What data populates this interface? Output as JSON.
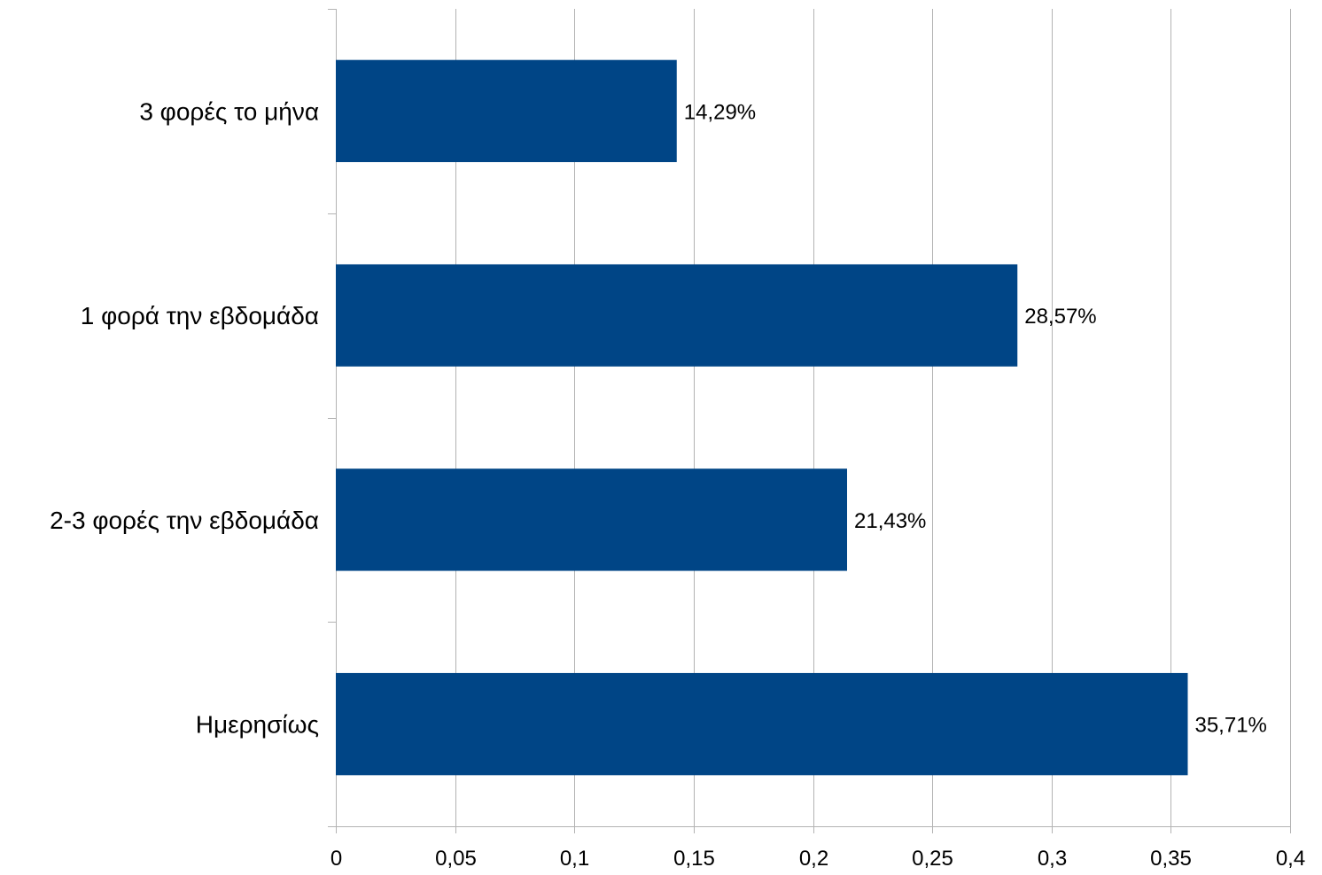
{
  "chart_data": {
    "type": "bar",
    "orientation": "horizontal",
    "title": "",
    "xlabel": "",
    "ylabel": "",
    "categories": [
      "3 φορές το μήνα",
      "1 φορά την εβδομάδα",
      "2-3 φορές την εβδομάδα",
      "Ημερησίως"
    ],
    "values": [
      0.1429,
      0.2857,
      0.2143,
      0.3571
    ],
    "data_labels": [
      "14,29%",
      "28,57%",
      "21,43%",
      "35,71%"
    ],
    "xlim": [
      0,
      0.4
    ],
    "xticks": [
      0,
      0.05,
      0.1,
      0.15,
      0.2,
      0.25,
      0.3,
      0.35,
      0.4
    ],
    "xtick_labels": [
      "0",
      "0,05",
      "0,1",
      "0,15",
      "0,2",
      "0,25",
      "0,3",
      "0,35",
      "0,4"
    ],
    "grid": "vertical",
    "legend": "none",
    "colors": {
      "bar": "#004586",
      "grid": "#b3b3b3",
      "text": "#000000"
    }
  }
}
